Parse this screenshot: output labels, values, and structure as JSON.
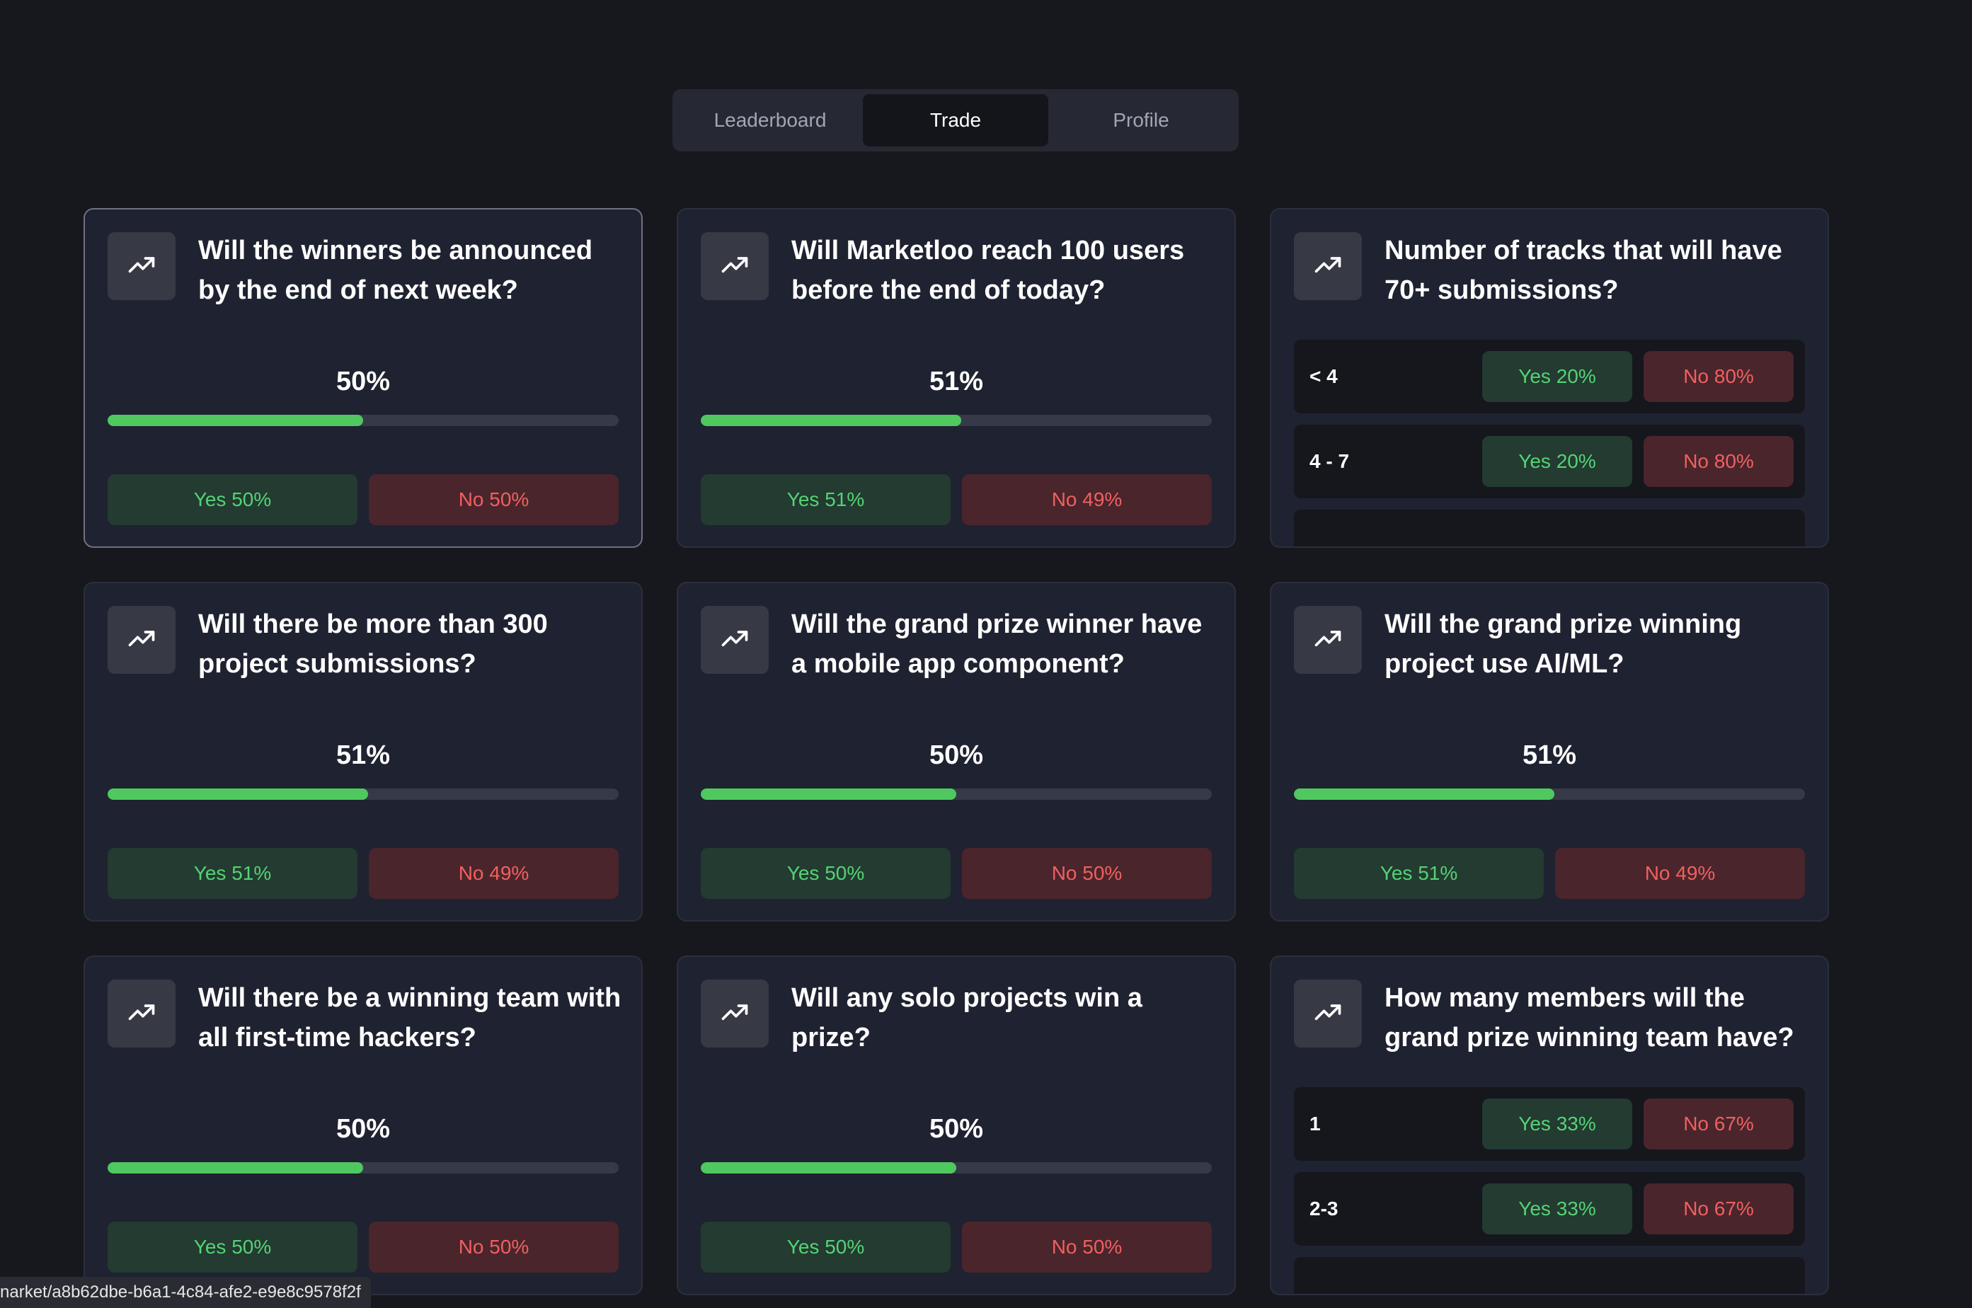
{
  "tabs": [
    {
      "label": "Leaderboard",
      "active": false
    },
    {
      "label": "Trade",
      "active": true
    },
    {
      "label": "Profile",
      "active": false
    }
  ],
  "colors": {
    "background": "#17181d",
    "card": "#1f2230",
    "accent_green": "#4fc95f",
    "yes_text": "#54d375",
    "no_text": "#f0605f"
  },
  "markets": [
    {
      "icon": "trending-up-icon",
      "question": "Will the winners be announced by the end of next week?",
      "percent_label": "50%",
      "fill_fraction": 0.5,
      "yes_label": "Yes 50%",
      "no_label": "No 50%"
    },
    {
      "icon": "trending-up-icon",
      "question": "Will Marketloo reach 100 users before the end of today?",
      "percent_label": "51%",
      "fill_fraction": 0.51,
      "yes_label": "Yes 51%",
      "no_label": "No 49%"
    },
    {
      "icon": "trending-up-icon",
      "question": "Number of tracks that will have 70+ submissions?",
      "options": [
        {
          "label": "< 4",
          "yes_label": "Yes 20%",
          "no_label": "No 80%"
        },
        {
          "label": "4 - 7",
          "yes_label": "Yes 20%",
          "no_label": "No 80%"
        }
      ]
    },
    {
      "icon": "trending-up-icon",
      "question": "Will there be more than 300 project submissions?",
      "percent_label": "51%",
      "fill_fraction": 0.51,
      "yes_label": "Yes 51%",
      "no_label": "No 49%"
    },
    {
      "icon": "trending-up-icon",
      "question": "Will the grand prize winner have a mobile app component?",
      "percent_label": "50%",
      "fill_fraction": 0.5,
      "yes_label": "Yes 50%",
      "no_label": "No 50%"
    },
    {
      "icon": "trending-up-icon",
      "question": "Will the grand prize winning project use AI/ML?",
      "percent_label": "51%",
      "fill_fraction": 0.51,
      "yes_label": "Yes 51%",
      "no_label": "No 49%"
    },
    {
      "icon": "trending-up-icon",
      "question": "Will there be a winning team with all first-time hackers?",
      "percent_label": "50%",
      "fill_fraction": 0.5,
      "yes_label": "Yes 50%",
      "no_label": "No 50%"
    },
    {
      "icon": "trending-up-icon",
      "question": "Will any solo projects win a prize?",
      "percent_label": "50%",
      "fill_fraction": 0.5,
      "yes_label": "Yes 50%",
      "no_label": "No 50%"
    },
    {
      "icon": "trending-up-icon",
      "question": "How many members will the grand prize winning team have?",
      "options": [
        {
          "label": "1",
          "yes_label": "Yes 33%",
          "no_label": "No 67%"
        },
        {
          "label": "2-3",
          "yes_label": "Yes 33%",
          "no_label": "No 67%"
        }
      ]
    }
  ],
  "status_bar": {
    "url": "narket/a8b62dbe-b6a1-4c84-afe2-e9e8c9578f2f"
  }
}
